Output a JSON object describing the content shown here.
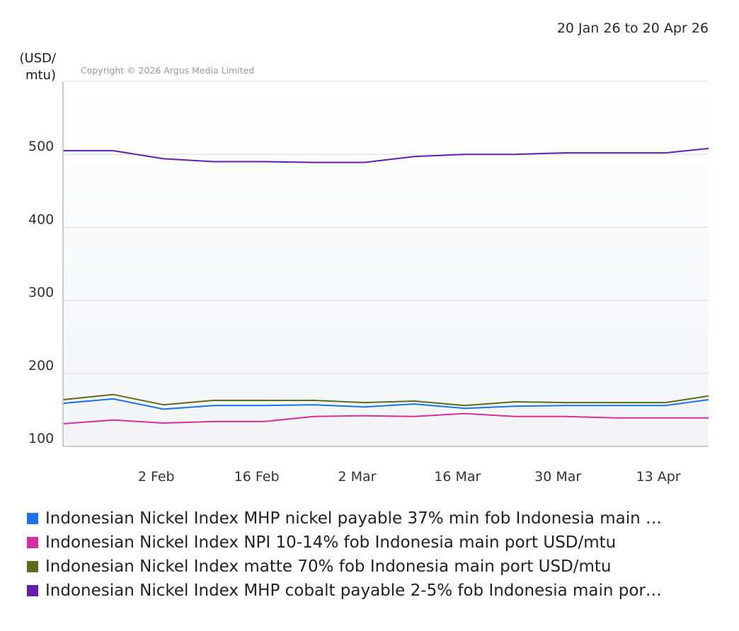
{
  "header": {
    "date_range": "20 Jan 26 to 20 Apr 26",
    "y_unit_line1": "(USD/",
    "y_unit_line2": "mtu)",
    "copyright": "Copyright © 2026 Argus Media Limited"
  },
  "chart_data": {
    "type": "line",
    "ylabel": "(USD/mtu)",
    "ylim": [
      100,
      600
    ],
    "yticks": [
      100,
      200,
      300,
      400,
      500
    ],
    "xlabels": [
      "2 Feb",
      "16 Feb",
      "2 Mar",
      "16 Mar",
      "30 Mar",
      "13 Apr"
    ],
    "xlabel_dates": [
      "2026-02-02",
      "2026-02-16",
      "2026-03-02",
      "2026-03-16",
      "2026-03-30",
      "2026-04-13"
    ],
    "xlim": [
      "2026-01-20",
      "2026-04-20"
    ],
    "grid": true,
    "x": [
      "2026-01-20",
      "2026-01-27",
      "2026-02-03",
      "2026-02-10",
      "2026-02-17",
      "2026-02-24",
      "2026-03-03",
      "2026-03-10",
      "2026-03-17",
      "2026-03-24",
      "2026-03-31",
      "2026-04-07",
      "2026-04-14",
      "2026-04-20"
    ],
    "series": [
      {
        "name": "Indonesian Nickel Index MHP nickel payable 37% min fob Indonesia main …",
        "color": "#1a73e8",
        "values": [
          159,
          165,
          151,
          156,
          156,
          157,
          154,
          158,
          152,
          155,
          156,
          156,
          156,
          164
        ]
      },
      {
        "name": "Indonesian Nickel Index NPI 10-14% fob Indonesia main port USD/mtu",
        "color": "#d62f9f",
        "values": [
          131,
          136,
          132,
          134,
          134,
          141,
          142,
          141,
          145,
          141,
          141,
          139,
          139,
          139
        ]
      },
      {
        "name": "Indonesian Nickel Index matte 70% fob Indonesia main port USD/mtu",
        "color": "#5c6b1c",
        "values": [
          164,
          171,
          157,
          163,
          163,
          163,
          160,
          162,
          156,
          161,
          160,
          160,
          160,
          169
        ]
      },
      {
        "name": "Indonesian Nickel Index MHP cobalt payable 2-5% fob Indonesia main por…",
        "color": "#6221a8",
        "values": [
          505,
          505,
          494,
          490,
          490,
          489,
          489,
          497,
          500,
          500,
          502,
          502,
          502,
          508
        ]
      }
    ]
  }
}
